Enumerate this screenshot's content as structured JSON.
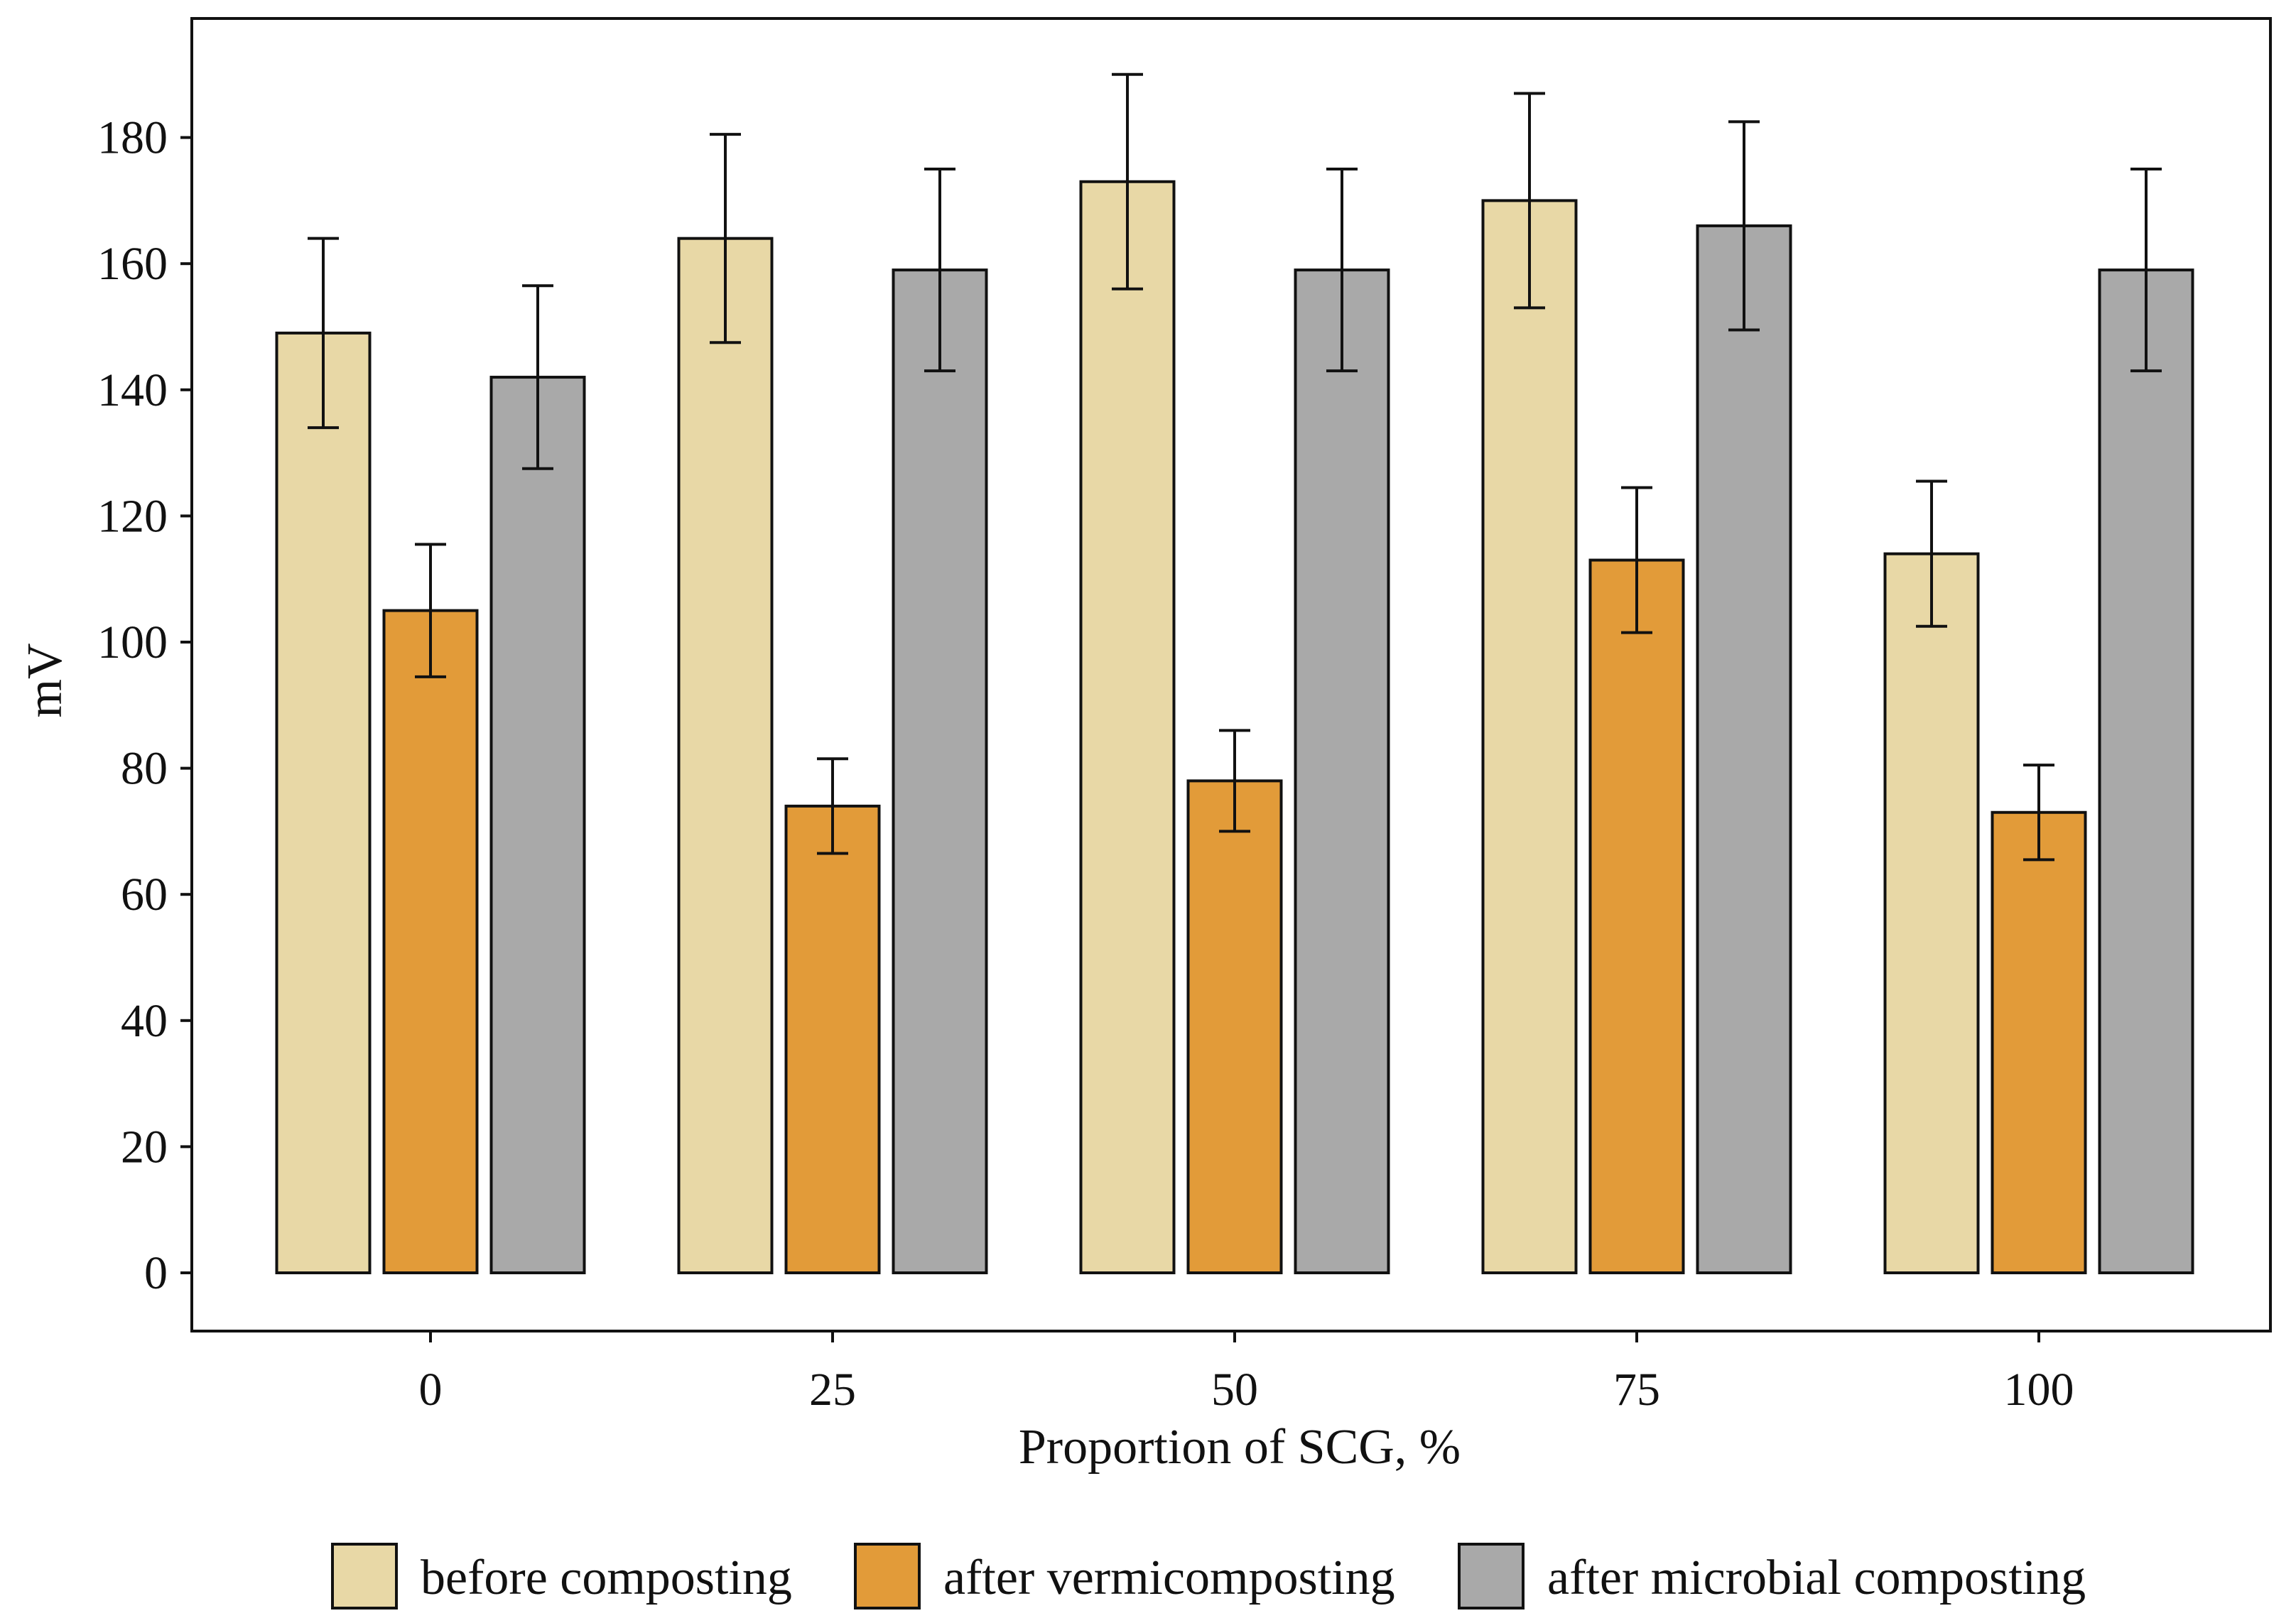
{
  "chart_data": {
    "type": "bar",
    "title": "",
    "xlabel": "Proportion of SCG, %",
    "ylabel": "mV",
    "categories": [
      "0",
      "25",
      "50",
      "75",
      "100"
    ],
    "ylim": [
      -10,
      192
    ],
    "yticks": [
      0,
      20,
      40,
      60,
      80,
      100,
      120,
      140,
      160,
      180
    ],
    "ytick_labels": [
      "0",
      "20",
      "40",
      "60",
      "80",
      "100",
      "120",
      "140",
      "160",
      "180"
    ],
    "grid": false,
    "legend_position": "bottom",
    "series": [
      {
        "name": "before composting",
        "color": "#e8d8a6",
        "values": [
          149,
          164,
          173,
          170,
          114
        ],
        "errors": [
          15,
          16.5,
          17,
          17,
          11.5
        ]
      },
      {
        "name": "after vermicomposting",
        "color": "#e29b39",
        "values": [
          105,
          74,
          78,
          113,
          73
        ],
        "errors": [
          10.5,
          7.5,
          8,
          11.5,
          7.5
        ]
      },
      {
        "name": "after microbial composting",
        "color": "#a9a9a9",
        "values": [
          142,
          159,
          159,
          166,
          159
        ],
        "errors": [
          14.5,
          16,
          16,
          16.5,
          16
        ]
      }
    ]
  }
}
